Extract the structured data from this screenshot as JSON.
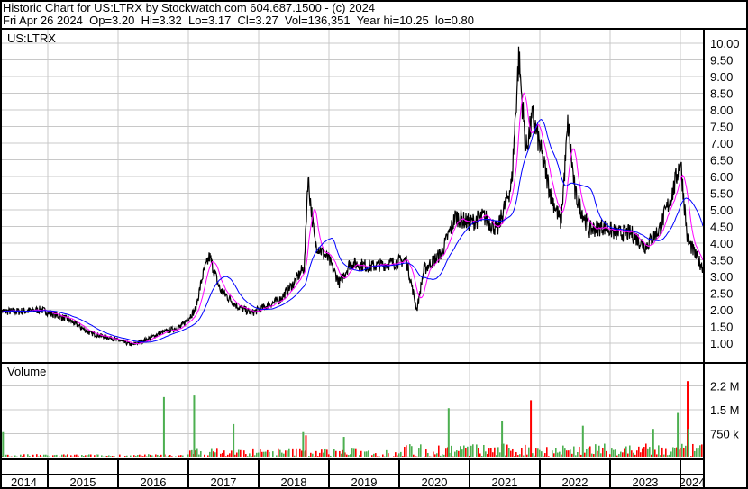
{
  "header": {
    "line1": "Historic Chart for US:LTRX by Stockwatch.com 604.687.1500 - (c) 2024",
    "line2": "Fri Apr 26 2024  Op=3.20  Hi=3.32  Lo=3.17  Cl=3.27  Vol=136,351  Year hi=10.25  lo=0.80"
  },
  "chart_data": [
    {
      "type": "line",
      "title": "US:LTRX",
      "ylim": [
        0.5,
        10.3
      ],
      "yticks": [
        "1.00",
        "1.50",
        "2.00",
        "2.50",
        "3.00",
        "3.50",
        "4.00",
        "4.50",
        "5.00",
        "5.50",
        "6.00",
        "6.50",
        "7.00",
        "7.50",
        "8.00",
        "8.50",
        "9.00",
        "9.50",
        "10.00"
      ],
      "xticks": [
        "2014",
        "2015",
        "2016",
        "2017",
        "2018",
        "2019",
        "2020",
        "2021",
        "2022",
        "2023",
        "2024"
      ],
      "grid": true,
      "series": [
        {
          "color": "#000000",
          "x": [
            2014.32,
            2014.6,
            2014.9,
            2015.1,
            2015.3,
            2015.6,
            2015.9,
            2016.2,
            2016.4,
            2016.6,
            2016.9,
            2017.1,
            2017.2,
            2017.3,
            2017.45,
            2017.7,
            2017.9,
            2018.1,
            2018.3,
            2018.5,
            2018.65,
            2018.7,
            2018.8,
            2019.0,
            2019.15,
            2019.3,
            2019.6,
            2019.9,
            2020.1,
            2020.25,
            2020.35,
            2020.6,
            2020.8,
            2021.0,
            2021.2,
            2021.4,
            2021.6,
            2021.7,
            2021.8,
            2021.9,
            2022.0,
            2022.15,
            2022.3,
            2022.4,
            2022.5,
            2022.7,
            2022.9,
            2023.1,
            2023.3,
            2023.5,
            2023.7,
            2023.9,
            2024.0,
            2024.1,
            2024.25,
            2024.32
          ],
          "y": [
            1.95,
            1.95,
            2.0,
            1.85,
            1.7,
            1.3,
            1.15,
            0.95,
            1.1,
            1.3,
            1.5,
            2.0,
            3.0,
            3.6,
            2.6,
            2.1,
            1.9,
            2.1,
            2.3,
            2.8,
            3.3,
            6.0,
            4.0,
            3.5,
            2.8,
            3.4,
            3.3,
            3.4,
            3.5,
            2.0,
            3.2,
            3.7,
            4.8,
            4.6,
            4.8,
            4.4,
            5.8,
            9.6,
            6.8,
            7.8,
            6.9,
            5.5,
            4.6,
            7.6,
            5.5,
            4.4,
            4.5,
            4.3,
            4.3,
            3.9,
            4.4,
            5.6,
            6.5,
            4.1,
            3.5,
            3.27
          ]
        },
        {
          "color": "#ff00ff"
        },
        {
          "color": "#0000ff"
        }
      ]
    },
    {
      "type": "bar",
      "title": "Volume",
      "yticks": [
        "750 k",
        "1.5 M",
        "2.2 M"
      ],
      "ylim": [
        0,
        2500000
      ],
      "up_color": "#4caf50",
      "down_color": "#ff0000",
      "spikes": [
        {
          "x": 2014.35,
          "v": 800000,
          "c": "up"
        },
        {
          "x": 2016.64,
          "v": 1900000,
          "c": "up"
        },
        {
          "x": 2017.07,
          "v": 1950000,
          "c": "up"
        },
        {
          "x": 2017.63,
          "v": 1050000,
          "c": "up"
        },
        {
          "x": 2018.62,
          "v": 800000,
          "c": "up"
        },
        {
          "x": 2018.66,
          "v": 700000,
          "c": "down"
        },
        {
          "x": 2019.2,
          "v": 650000,
          "c": "up"
        },
        {
          "x": 2020.69,
          "v": 1550000,
          "c": "up"
        },
        {
          "x": 2021.45,
          "v": 1150000,
          "c": "up"
        },
        {
          "x": 2021.86,
          "v": 1800000,
          "c": "down"
        },
        {
          "x": 2022.6,
          "v": 1000000,
          "c": "up"
        },
        {
          "x": 2023.6,
          "v": 900000,
          "c": "up"
        },
        {
          "x": 2023.95,
          "v": 1400000,
          "c": "up"
        },
        {
          "x": 2024.09,
          "v": 2400000,
          "c": "down"
        },
        {
          "x": 2024.1,
          "v": 900000,
          "c": "up"
        }
      ]
    }
  ]
}
